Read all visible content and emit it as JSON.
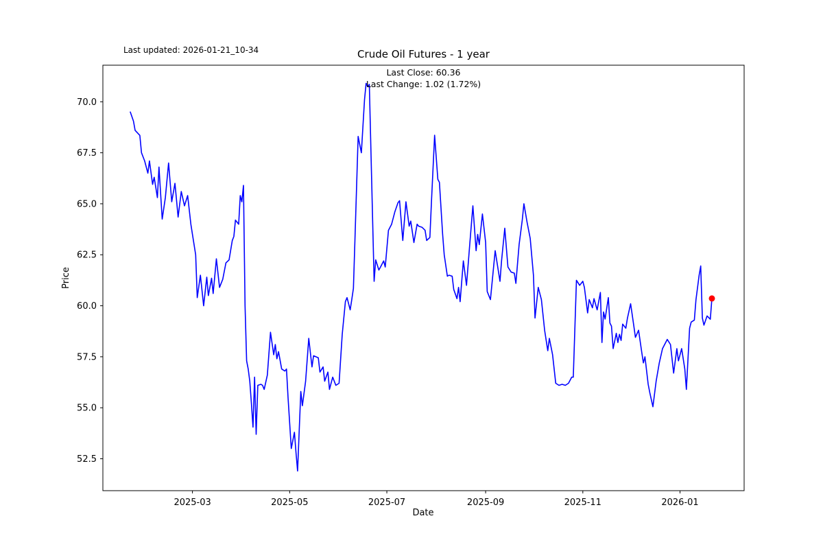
{
  "header": {
    "last_updated": "Last updated: 2026-01-21_10-34"
  },
  "chart_data": {
    "type": "line",
    "title": "Crude Oil Futures - 1 year",
    "annotation_line1": "Last Close: 60.36",
    "annotation_line2": "Last Change: 1.02 (1.72%)",
    "xlabel": "Date",
    "ylabel": "Price",
    "x_tick_labels": [
      "2025-03",
      "2025-05",
      "2025-07",
      "2025-09",
      "2025-11",
      "2026-01"
    ],
    "x_tick_dates": [
      "2025-03-01",
      "2025-05-01",
      "2025-07-01",
      "2025-09-01",
      "2025-11-01",
      "2026-01-01"
    ],
    "y_ticks": [
      52.5,
      55.0,
      57.5,
      60.0,
      62.5,
      65.0,
      67.5,
      70.0
    ],
    "ylim": [
      50.9,
      71.8
    ],
    "grid": false,
    "legend": "none",
    "line_color": "#0000ff",
    "marker_color": "#ff0000",
    "last_close": 60.36,
    "last_change": "1.02 (1.72%)",
    "series": [
      {
        "name": "price",
        "points": [
          [
            "2025-01-21",
            69.5
          ],
          [
            "2025-01-23",
            69.05
          ],
          [
            "2025-01-24",
            68.6
          ],
          [
            "2025-01-27",
            68.35
          ],
          [
            "2025-01-28",
            67.5
          ],
          [
            "2025-01-30",
            67.1
          ],
          [
            "2025-02-01",
            66.5
          ],
          [
            "2025-02-02",
            67.1
          ],
          [
            "2025-02-04",
            65.95
          ],
          [
            "2025-02-05",
            66.3
          ],
          [
            "2025-02-07",
            65.3
          ],
          [
            "2025-02-08",
            66.8
          ],
          [
            "2025-02-10",
            64.25
          ],
          [
            "2025-02-12",
            65.3
          ],
          [
            "2025-02-14",
            67.0
          ],
          [
            "2025-02-16",
            65.1
          ],
          [
            "2025-02-18",
            66.0
          ],
          [
            "2025-02-20",
            64.35
          ],
          [
            "2025-02-22",
            65.6
          ],
          [
            "2025-02-24",
            64.9
          ],
          [
            "2025-02-26",
            65.4
          ],
          [
            "2025-02-28",
            64.0
          ],
          [
            "2025-03-01",
            63.5
          ],
          [
            "2025-03-03",
            62.5
          ],
          [
            "2025-03-04",
            60.4
          ],
          [
            "2025-03-06",
            61.5
          ],
          [
            "2025-03-08",
            60.0
          ],
          [
            "2025-03-10",
            61.4
          ],
          [
            "2025-03-11",
            60.5
          ],
          [
            "2025-03-13",
            61.35
          ],
          [
            "2025-03-14",
            60.6
          ],
          [
            "2025-03-16",
            62.3
          ],
          [
            "2025-03-18",
            60.9
          ],
          [
            "2025-03-20",
            61.3
          ],
          [
            "2025-03-22",
            62.1
          ],
          [
            "2025-03-24",
            62.25
          ],
          [
            "2025-03-26",
            63.2
          ],
          [
            "2025-03-27",
            63.4
          ],
          [
            "2025-03-28",
            64.2
          ],
          [
            "2025-03-30",
            64.0
          ],
          [
            "2025-03-31",
            65.4
          ],
          [
            "2025-04-01",
            65.1
          ],
          [
            "2025-04-02",
            65.9
          ],
          [
            "2025-04-03",
            60.0
          ],
          [
            "2025-04-04",
            57.3
          ],
          [
            "2025-04-05",
            56.9
          ],
          [
            "2025-04-06",
            56.3
          ],
          [
            "2025-04-07",
            55.2
          ],
          [
            "2025-04-08",
            54.05
          ],
          [
            "2025-04-09",
            56.5
          ],
          [
            "2025-04-10",
            53.7
          ],
          [
            "2025-04-11",
            56.1
          ],
          [
            "2025-04-13",
            56.15
          ],
          [
            "2025-04-14",
            56.1
          ],
          [
            "2025-04-15",
            55.9
          ],
          [
            "2025-04-17",
            56.6
          ],
          [
            "2025-04-19",
            58.7
          ],
          [
            "2025-04-21",
            57.6
          ],
          [
            "2025-04-22",
            58.1
          ],
          [
            "2025-04-23",
            57.4
          ],
          [
            "2025-04-24",
            57.75
          ],
          [
            "2025-04-26",
            56.9
          ],
          [
            "2025-04-28",
            56.8
          ],
          [
            "2025-04-29",
            56.9
          ],
          [
            "2025-04-30",
            55.5
          ],
          [
            "2025-05-02",
            53.0
          ],
          [
            "2025-05-04",
            53.8
          ],
          [
            "2025-05-05",
            52.8
          ],
          [
            "2025-05-06",
            51.9
          ],
          [
            "2025-05-07",
            53.9
          ],
          [
            "2025-05-08",
            55.8
          ],
          [
            "2025-05-09",
            55.1
          ],
          [
            "2025-05-11",
            56.3
          ],
          [
            "2025-05-13",
            58.4
          ],
          [
            "2025-05-15",
            57.0
          ],
          [
            "2025-05-16",
            57.55
          ],
          [
            "2025-05-19",
            57.45
          ],
          [
            "2025-05-20",
            56.75
          ],
          [
            "2025-05-22",
            57.0
          ],
          [
            "2025-05-23",
            56.3
          ],
          [
            "2025-05-25",
            56.75
          ],
          [
            "2025-05-26",
            55.9
          ],
          [
            "2025-05-28",
            56.5
          ],
          [
            "2025-05-30",
            56.1
          ],
          [
            "2025-06-01",
            56.2
          ],
          [
            "2025-06-03",
            58.6
          ],
          [
            "2025-06-05",
            60.2
          ],
          [
            "2025-06-06",
            60.4
          ],
          [
            "2025-06-08",
            59.8
          ],
          [
            "2025-06-09",
            60.3
          ],
          [
            "2025-06-10",
            60.85
          ],
          [
            "2025-06-11",
            63.3
          ],
          [
            "2025-06-13",
            68.3
          ],
          [
            "2025-06-15",
            67.5
          ],
          [
            "2025-06-17",
            70.1
          ],
          [
            "2025-06-18",
            70.9
          ],
          [
            "2025-06-19",
            70.75
          ],
          [
            "2025-06-20",
            70.85
          ],
          [
            "2025-06-23",
            61.2
          ],
          [
            "2025-06-24",
            62.25
          ],
          [
            "2025-06-26",
            61.75
          ],
          [
            "2025-06-27",
            61.9
          ],
          [
            "2025-06-29",
            62.2
          ],
          [
            "2025-06-30",
            61.9
          ],
          [
            "2025-07-02",
            63.7
          ],
          [
            "2025-07-04",
            64.0
          ],
          [
            "2025-07-06",
            64.6
          ],
          [
            "2025-07-08",
            65.05
          ],
          [
            "2025-07-09",
            65.15
          ],
          [
            "2025-07-11",
            63.2
          ],
          [
            "2025-07-13",
            65.1
          ],
          [
            "2025-07-15",
            63.9
          ],
          [
            "2025-07-16",
            64.15
          ],
          [
            "2025-07-18",
            63.1
          ],
          [
            "2025-07-20",
            64.0
          ],
          [
            "2025-07-21",
            63.9
          ],
          [
            "2025-07-23",
            63.85
          ],
          [
            "2025-07-25",
            63.7
          ],
          [
            "2025-07-26",
            63.2
          ],
          [
            "2025-07-28",
            63.35
          ],
          [
            "2025-07-29",
            65.1
          ],
          [
            "2025-07-31",
            68.36
          ],
          [
            "2025-08-02",
            66.2
          ],
          [
            "2025-08-03",
            66.05
          ],
          [
            "2025-08-05",
            63.5
          ],
          [
            "2025-08-06",
            62.5
          ],
          [
            "2025-08-08",
            61.45
          ],
          [
            "2025-08-09",
            61.5
          ],
          [
            "2025-08-11",
            61.45
          ],
          [
            "2025-08-12",
            60.8
          ],
          [
            "2025-08-14",
            60.35
          ],
          [
            "2025-08-15",
            60.9
          ],
          [
            "2025-08-16",
            60.2
          ],
          [
            "2025-08-18",
            62.2
          ],
          [
            "2025-08-20",
            61.0
          ],
          [
            "2025-08-22",
            63.0
          ],
          [
            "2025-08-24",
            64.9
          ],
          [
            "2025-08-26",
            62.7
          ],
          [
            "2025-08-27",
            63.5
          ],
          [
            "2025-08-28",
            63.0
          ],
          [
            "2025-08-30",
            64.5
          ],
          [
            "2025-09-01",
            63.1
          ],
          [
            "2025-09-02",
            60.7
          ],
          [
            "2025-09-04",
            60.3
          ],
          [
            "2025-09-06",
            61.9
          ],
          [
            "2025-09-07",
            62.7
          ],
          [
            "2025-09-10",
            61.2
          ],
          [
            "2025-09-11",
            62.2
          ],
          [
            "2025-09-13",
            63.8
          ],
          [
            "2025-09-15",
            61.9
          ],
          [
            "2025-09-17",
            61.65
          ],
          [
            "2025-09-19",
            61.6
          ],
          [
            "2025-09-20",
            61.1
          ],
          [
            "2025-09-22",
            63.0
          ],
          [
            "2025-09-24",
            64.2
          ],
          [
            "2025-09-25",
            65.0
          ],
          [
            "2025-09-27",
            64.1
          ],
          [
            "2025-09-29",
            63.3
          ],
          [
            "2025-10-01",
            61.5
          ],
          [
            "2025-10-02",
            59.4
          ],
          [
            "2025-10-04",
            60.9
          ],
          [
            "2025-10-06",
            60.3
          ],
          [
            "2025-10-08",
            58.8
          ],
          [
            "2025-10-10",
            57.8
          ],
          [
            "2025-10-11",
            58.4
          ],
          [
            "2025-10-13",
            57.6
          ],
          [
            "2025-10-15",
            56.2
          ],
          [
            "2025-10-17",
            56.1
          ],
          [
            "2025-10-19",
            56.15
          ],
          [
            "2025-10-21",
            56.1
          ],
          [
            "2025-10-23",
            56.2
          ],
          [
            "2025-10-25",
            56.5
          ],
          [
            "2025-10-26",
            56.5
          ],
          [
            "2025-10-28",
            61.25
          ],
          [
            "2025-10-30",
            61.0
          ],
          [
            "2025-11-01",
            61.2
          ],
          [
            "2025-11-02",
            60.9
          ],
          [
            "2025-11-04",
            59.65
          ],
          [
            "2025-11-05",
            60.3
          ],
          [
            "2025-11-07",
            59.9
          ],
          [
            "2025-11-08",
            60.35
          ],
          [
            "2025-11-10",
            59.8
          ],
          [
            "2025-11-12",
            60.65
          ],
          [
            "2025-11-13",
            58.2
          ],
          [
            "2025-11-14",
            59.7
          ],
          [
            "2025-11-15",
            59.35
          ],
          [
            "2025-11-17",
            60.4
          ],
          [
            "2025-11-18",
            59.15
          ],
          [
            "2025-11-19",
            59.0
          ],
          [
            "2025-11-20",
            57.9
          ],
          [
            "2025-11-22",
            58.65
          ],
          [
            "2025-11-23",
            58.2
          ],
          [
            "2025-11-24",
            58.6
          ],
          [
            "2025-11-25",
            58.3
          ],
          [
            "2025-11-26",
            59.1
          ],
          [
            "2025-11-28",
            58.9
          ],
          [
            "2025-11-29",
            59.4
          ],
          [
            "2025-12-01",
            60.1
          ],
          [
            "2025-12-03",
            59.0
          ],
          [
            "2025-12-04",
            58.45
          ],
          [
            "2025-12-06",
            58.8
          ],
          [
            "2025-12-08",
            57.7
          ],
          [
            "2025-12-09",
            57.2
          ],
          [
            "2025-12-10",
            57.5
          ],
          [
            "2025-12-12",
            56.15
          ],
          [
            "2025-12-13",
            55.75
          ],
          [
            "2025-12-15",
            55.05
          ],
          [
            "2025-12-17",
            56.3
          ],
          [
            "2025-12-19",
            57.2
          ],
          [
            "2025-12-21",
            57.9
          ],
          [
            "2025-12-24",
            58.35
          ],
          [
            "2025-12-26",
            58.1
          ],
          [
            "2025-12-28",
            56.7
          ],
          [
            "2025-12-30",
            57.9
          ],
          [
            "2025-12-31",
            57.3
          ],
          [
            "2026-01-02",
            57.9
          ],
          [
            "2026-01-04",
            56.9
          ],
          [
            "2026-01-05",
            55.9
          ],
          [
            "2026-01-07",
            58.9
          ],
          [
            "2026-01-08",
            59.2
          ],
          [
            "2026-01-10",
            59.3
          ],
          [
            "2026-01-11",
            60.3
          ],
          [
            "2026-01-13",
            61.5
          ],
          [
            "2026-01-14",
            61.95
          ],
          [
            "2026-01-15",
            59.4
          ],
          [
            "2026-01-16",
            59.05
          ],
          [
            "2026-01-18",
            59.5
          ],
          [
            "2026-01-20",
            59.34
          ],
          [
            "2026-01-21",
            60.36
          ]
        ]
      }
    ]
  }
}
